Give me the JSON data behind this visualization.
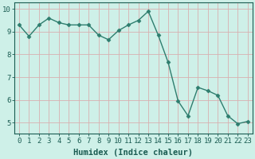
{
  "x": [
    0,
    1,
    2,
    3,
    4,
    5,
    6,
    7,
    8,
    9,
    10,
    11,
    12,
    13,
    14,
    15,
    16,
    17,
    18,
    19,
    20,
    21,
    22,
    23
  ],
  "y": [
    9.3,
    8.8,
    9.3,
    9.6,
    9.4,
    9.3,
    9.3,
    9.3,
    8.85,
    8.65,
    9.05,
    9.3,
    9.5,
    9.9,
    8.85,
    7.65,
    5.95,
    5.3,
    6.55,
    6.4,
    6.2,
    5.3,
    4.95,
    5.05
  ],
  "line_color": "#2e7d6e",
  "marker": "D",
  "marker_size": 2.5,
  "bg_color": "#cef0e8",
  "grid_color": "#d8b0b0",
  "xlabel": "Humidex (Indice chaleur)",
  "xlim": [
    -0.5,
    23.5
  ],
  "ylim": [
    4.5,
    10.3
  ],
  "yticks": [
    5,
    6,
    7,
    8,
    9,
    10
  ],
  "xticks": [
    0,
    1,
    2,
    3,
    4,
    5,
    6,
    7,
    8,
    9,
    10,
    11,
    12,
    13,
    14,
    15,
    16,
    17,
    18,
    19,
    20,
    21,
    22,
    23
  ],
  "tick_color": "#1a5c52",
  "xlabel_color": "#1a5c52",
  "xlabel_fontsize": 7.5,
  "tick_fontsize": 6.5,
  "linewidth": 1.0
}
